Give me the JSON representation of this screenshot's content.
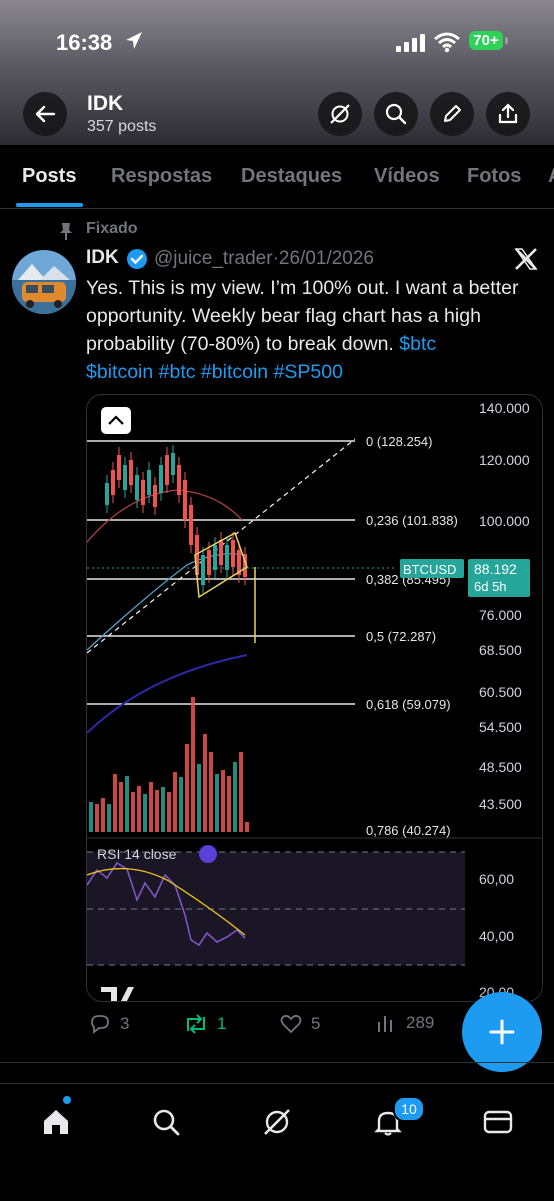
{
  "status_bar": {
    "time": "16:38",
    "battery": "70+"
  },
  "header": {
    "name": "IDK",
    "post_count": "357 posts"
  },
  "tabs": [
    {
      "label": "Posts",
      "active": true
    },
    {
      "label": "Respostas"
    },
    {
      "label": "Destaques"
    },
    {
      "label": "Vídeos"
    },
    {
      "label": "Fotos"
    },
    {
      "label": "A"
    }
  ],
  "post": {
    "pinned_label": "Fixado",
    "author": "IDK",
    "handle": "@juice_trader",
    "date": "·26/01/2026",
    "text_plain": "Yes. This is my view. I’m 100% out. I want a better opportunity. Weekly bear flag chart has a high probability (70-80%) to break down. ",
    "tags": [
      "$btc",
      "$bitcoin",
      "#btc",
      "#bitcoin",
      "#SP500"
    ],
    "replies": "3",
    "reposts": "1",
    "likes": "5",
    "views": "289"
  },
  "notifications_badge": "10",
  "colors": {
    "accent": "#1d9bf0",
    "repost_green": "#00ba7c",
    "bull": "#26a69a",
    "bear": "#ef5350"
  },
  "chart_data": {
    "type": "candlestick",
    "symbol": "BTCUSD",
    "last_price": "88.192",
    "countdown": "6d 5h",
    "y_axis_ticks": [
      "140.000",
      "120.000",
      "100.000",
      "88.192",
      "76.000",
      "68.500",
      "60.500",
      "54.500",
      "48.500",
      "43.500"
    ],
    "fib_levels": [
      {
        "label": "0 (128.254)",
        "value": 128.254
      },
      {
        "label": "0,236 (101.838)",
        "value": 101.838
      },
      {
        "label": "0,382 (85.495)",
        "value": 85.495
      },
      {
        "label": "0,5 (72.287)",
        "value": 72.287
      },
      {
        "label": "0,618 (59.079)",
        "value": 59.079
      },
      {
        "label": "0,786 (40.274)",
        "value": 40.274
      }
    ],
    "indicator": {
      "name": "RSI 14 close",
      "ticks": [
        "60,00",
        "40,00",
        "20,00"
      ]
    }
  }
}
